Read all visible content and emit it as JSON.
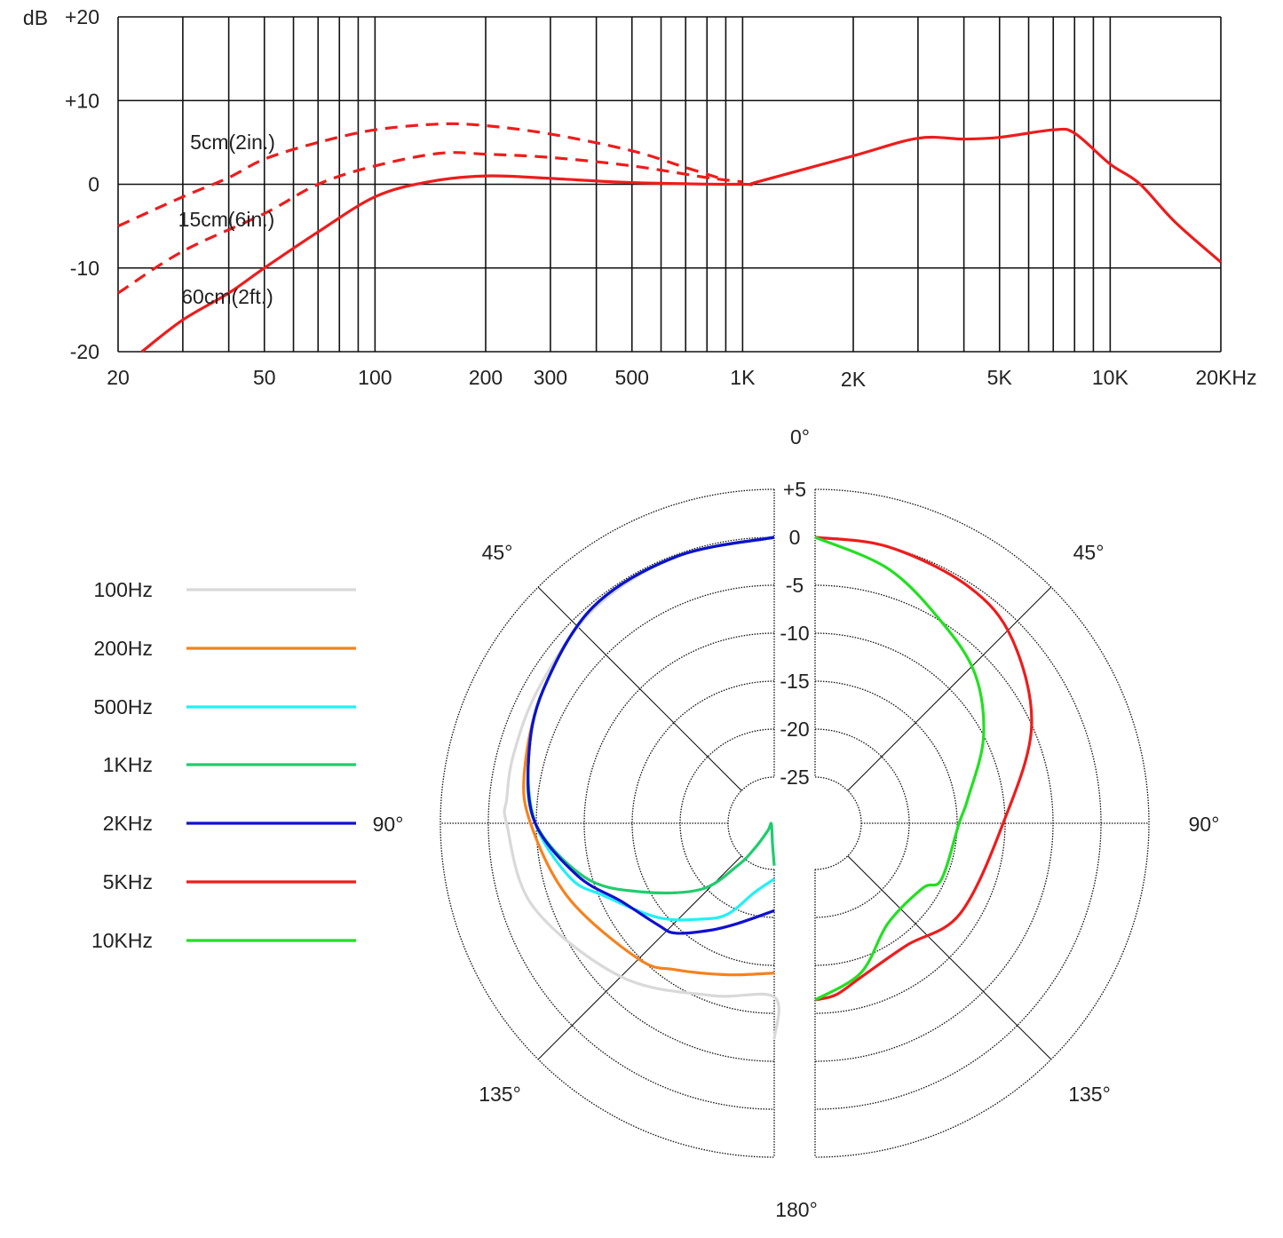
{
  "chart_data": [
    {
      "type": "line",
      "x_scale": "log",
      "xlim": [
        20,
        20000
      ],
      "ylim": [
        -20,
        20
      ],
      "grid": true,
      "y_unit_label": "dB",
      "y_ticks": [
        {
          "v": 20,
          "label": "+20"
        },
        {
          "v": 10,
          "label": "+10"
        },
        {
          "v": 0,
          "label": "0"
        },
        {
          "v": -10,
          "label": "-10"
        },
        {
          "v": -20,
          "label": "-20"
        }
      ],
      "x_ticks": [
        {
          "v": 20,
          "label": "20"
        },
        {
          "v": 50,
          "label": "50"
        },
        {
          "v": 100,
          "label": "100"
        },
        {
          "v": 200,
          "label": "200"
        },
        {
          "v": 300,
          "label": "300"
        },
        {
          "v": 500,
          "label": "500"
        },
        {
          "v": 1000,
          "label": "1K"
        },
        {
          "v": 2000,
          "label": "2K"
        },
        {
          "v": 5000,
          "label": "5K"
        },
        {
          "v": 10000,
          "label": "10K"
        },
        {
          "v": 20000,
          "label": "20KHz"
        }
      ],
      "x_gridlines": [
        20,
        30,
        40,
        50,
        60,
        70,
        80,
        90,
        100,
        200,
        300,
        400,
        500,
        600,
        700,
        800,
        900,
        1000,
        2000,
        3000,
        4000,
        5000,
        6000,
        7000,
        8000,
        9000,
        10000,
        20000
      ],
      "color": "#ee1c1c",
      "series": [
        {
          "name": "5cm(2in.)",
          "style": "dashed",
          "points": [
            [
              20,
              -5
            ],
            [
              30,
              -1.5
            ],
            [
              40,
              0.8
            ],
            [
              50,
              3
            ],
            [
              70,
              5
            ],
            [
              100,
              6.5
            ],
            [
              150,
              7.2
            ],
            [
              200,
              7
            ],
            [
              300,
              6
            ],
            [
              500,
              4
            ],
            [
              700,
              2
            ],
            [
              900,
              0.5
            ]
          ]
        },
        {
          "name": "15cm(6in.)",
          "style": "dashed",
          "points": [
            [
              20,
              -13
            ],
            [
              30,
              -8
            ],
            [
              50,
              -3.5
            ],
            [
              70,
              0
            ],
            [
              100,
              2.2
            ],
            [
              150,
              3.7
            ],
            [
              200,
              3.6
            ],
            [
              300,
              3.2
            ],
            [
              500,
              2.2
            ],
            [
              800,
              0.8
            ],
            [
              1000,
              0.3
            ]
          ]
        },
        {
          "name": "60cm(2ft.)",
          "style": "solid",
          "points": [
            [
              23.2,
              -20
            ],
            [
              30,
              -16.2
            ],
            [
              40,
              -13
            ],
            [
              50,
              -10
            ],
            [
              70,
              -5.7
            ],
            [
              100,
              -1.5
            ],
            [
              140,
              0.3
            ],
            [
              200,
              1
            ],
            [
              300,
              0.7
            ],
            [
              500,
              0.2
            ],
            [
              1000,
              0
            ],
            [
              1100,
              0.3
            ],
            [
              2000,
              3.4
            ],
            [
              3000,
              5.5
            ],
            [
              4000,
              5.4
            ],
            [
              5000,
              5.6
            ],
            [
              7000,
              6.5
            ],
            [
              8000,
              6.1
            ],
            [
              10000,
              2.4
            ],
            [
              12000,
              0.1
            ],
            [
              15000,
              -4.5
            ],
            [
              20000,
              -9.3
            ]
          ]
        }
      ]
    },
    {
      "type": "polar",
      "r_range_db": [
        -25,
        5
      ],
      "ring_labels": [
        "+5",
        "0",
        "-5",
        "-10",
        "-15",
        "-20",
        "-25"
      ],
      "ring_values": [
        5,
        0,
        -5,
        -10,
        -15,
        -20,
        -25
      ],
      "angle_labels": {
        "top": "0°",
        "left45": "45°",
        "right45": "45°",
        "left90": "90°",
        "right90": "90°",
        "left135": "135°",
        "right135": "135°",
        "bottom": "180°"
      },
      "series": [
        {
          "name": "100Hz",
          "color": "#d9d9d9",
          "side": "left",
          "points": [
            [
              0,
              0
            ],
            [
              20,
              -0.2
            ],
            [
              40,
              -0.6
            ],
            [
              60,
              -1.5
            ],
            [
              75,
              -1.7
            ],
            [
              85,
              -1.8
            ],
            [
              90,
              -1.9
            ],
            [
              109,
              -3.2
            ],
            [
              135,
              -7.2
            ],
            [
              160,
              -10.7
            ],
            [
              180,
              -11.7
            ],
            [
              180,
              -7.3
            ]
          ]
        },
        {
          "name": "200Hz",
          "color": "#f5821f",
          "side": "left",
          "points": [
            [
              0,
              0
            ],
            [
              20,
              -0.2
            ],
            [
              40,
              -0.4
            ],
            [
              60,
              -2
            ],
            [
              78,
              -3.2
            ],
            [
              90,
              -4.4
            ],
            [
              110,
              -7
            ],
            [
              135,
              -9.8
            ],
            [
              146,
              -11.4
            ],
            [
              163,
              -13.3
            ],
            [
              180,
              -14.2
            ]
          ]
        },
        {
          "name": "500Hz",
          "color": "#22f0f5",
          "side": "left",
          "points": [
            [
              0,
              0
            ],
            [
              20,
              -0.2
            ],
            [
              40,
              -0.4
            ],
            [
              60,
              -2
            ],
            [
              75,
              -3.3
            ],
            [
              90,
              -4.9
            ],
            [
              105,
              -7.8
            ],
            [
              113,
              -10.5
            ],
            [
              129,
              -14.2
            ],
            [
              143,
              -17.3
            ],
            [
              153,
              -19.2
            ],
            [
              164,
              -22.3
            ],
            [
              180,
              -24
            ]
          ]
        },
        {
          "name": "1KHz",
          "color": "#1fcc6e",
          "side": "left",
          "points": [
            [
              0,
              0
            ],
            [
              20,
              -0.2
            ],
            [
              40,
              -0.4
            ],
            [
              60,
              -2
            ],
            [
              75,
              -3.3
            ],
            [
              90,
              -4.9
            ],
            [
              106,
              -9.3
            ],
            [
              117,
              -14.1
            ],
            [
              132,
              -19.5
            ],
            [
              139,
              -23.9
            ],
            [
              142,
              -26.5
            ],
            [
              139,
              -28.8
            ],
            [
              100,
              -29.5
            ],
            [
              175,
              -27.7
            ],
            [
              180,
              -25.4
            ]
          ]
        },
        {
          "name": "2KHz",
          "color": "#1010d0",
          "side": "left",
          "points": [
            [
              0,
              0
            ],
            [
              20,
              -0.2
            ],
            [
              40,
              -0.4
            ],
            [
              60,
              -2
            ],
            [
              75,
              -3.3
            ],
            [
              90,
              -4.9
            ],
            [
              105,
              -8.6
            ],
            [
              117,
              -11.9
            ],
            [
              131,
              -13.7
            ],
            [
              138,
              -14.4
            ],
            [
              149,
              -16.8
            ],
            [
              160,
              -18.7
            ],
            [
              180,
              -20.7
            ]
          ]
        },
        {
          "name": "5KHz",
          "color": "#ee1c1c",
          "side": "right",
          "points": [
            [
              0,
              0
            ],
            [
              15,
              0
            ],
            [
              33,
              -0.4
            ],
            [
              47,
              -1.7
            ],
            [
              66,
              -5.1
            ],
            [
              90,
              -10.2
            ],
            [
              122,
              -12
            ],
            [
              143,
              -13.9
            ],
            [
              163,
              -13.1
            ],
            [
              173,
              -11.8
            ],
            [
              180,
              -11.4
            ]
          ]
        },
        {
          "name": "10KHz",
          "color": "#22e022",
          "side": "right",
          "points": [
            [
              0,
              0
            ],
            [
              16,
              -2.2
            ],
            [
              32,
              -5
            ],
            [
              47,
              -7
            ],
            [
              63,
              -10.1
            ],
            [
              81,
              -13.7
            ],
            [
              90,
              -14.8
            ],
            [
              114,
              -15.4
            ],
            [
              121,
              -16.7
            ],
            [
              144,
              -16.9
            ],
            [
              163,
              -13.5
            ],
            [
              180,
              -11.4
            ]
          ]
        }
      ]
    }
  ]
}
